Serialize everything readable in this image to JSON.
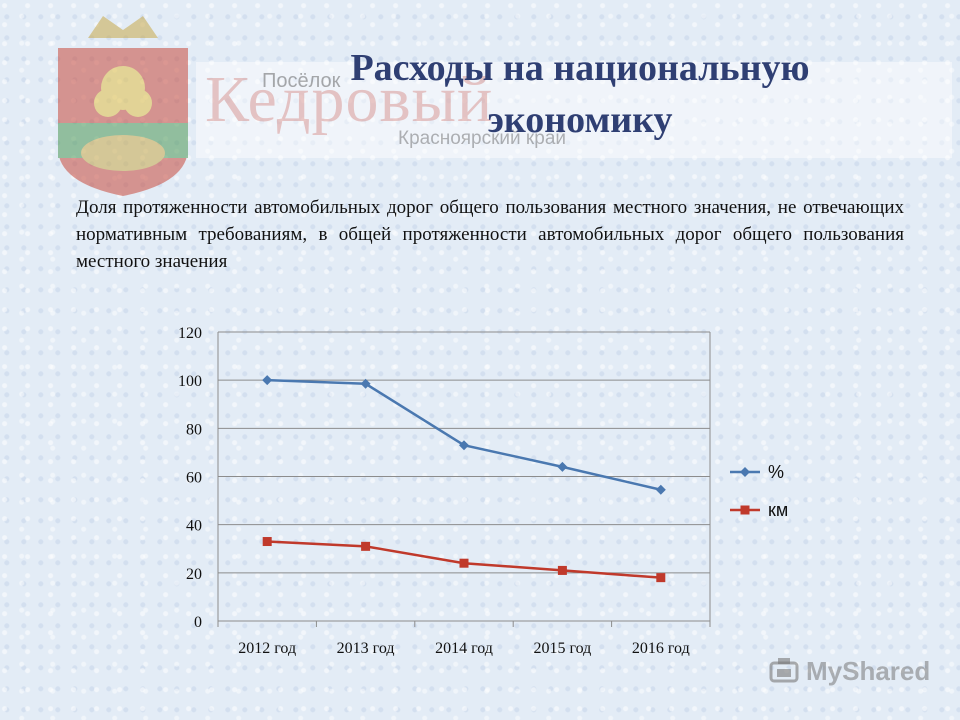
{
  "header": {
    "title_line1": "Расходы на национальную",
    "title_line2": "экономику",
    "town_prefix": "Посёлок",
    "town_name": "Кедровый",
    "town_region": "Красноярский край"
  },
  "subtitle": "Доля протяженности автомобильных дорог общего пользования местного значения, не отвечающих нормативным требованиям, в общей протяженности автомобильных дорог общего пользования местного значения",
  "watermark": "MyShared",
  "colors": {
    "series1": "#4a78b0",
    "series2": "#c0392b",
    "title": "#2f3f73"
  },
  "chart_data": {
    "type": "line",
    "categories": [
      "2012 год",
      "2013 год",
      "2014 год",
      "2015 год",
      "2016 год"
    ],
    "series": [
      {
        "name": "%",
        "values": [
          100,
          98.5,
          73,
          64,
          54.5
        ],
        "color": "#4a78b0",
        "marker": "diamond"
      },
      {
        "name": "км",
        "values": [
          33,
          31,
          24,
          21,
          18
        ],
        "color": "#c0392b",
        "marker": "square"
      }
    ],
    "ylim": [
      0,
      120
    ],
    "yticks": [
      0,
      20,
      40,
      60,
      80,
      100,
      120
    ],
    "grid": true,
    "legend": "right"
  }
}
